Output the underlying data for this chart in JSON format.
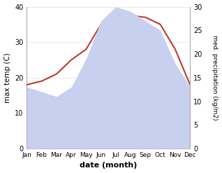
{
  "months": [
    "Jan",
    "Feb",
    "Mar",
    "Apr",
    "May",
    "Jun",
    "Jul",
    "Aug",
    "Sep",
    "Oct",
    "Nov",
    "Dec"
  ],
  "temperature": [
    18,
    19,
    21,
    25,
    28,
    35,
    38,
    37.5,
    37,
    35,
    28,
    18
  ],
  "precipitation": [
    13,
    12,
    11,
    13,
    19,
    27,
    30,
    29,
    27,
    25,
    18,
    13
  ],
  "temp_color": "#c0392b",
  "precip_fill_color": "#c8d0f0",
  "precip_line_color": "#c8d0f0",
  "bg_color": "#ffffff",
  "xlabel": "date (month)",
  "ylabel_left": "max temp (C)",
  "ylabel_right": "med. precipitation (kg/m2)",
  "ylim_left": [
    0,
    40
  ],
  "ylim_right": [
    0,
    30
  ],
  "yticks_left": [
    0,
    10,
    20,
    30,
    40
  ],
  "yticks_right": [
    0,
    5,
    10,
    15,
    20,
    25,
    30
  ]
}
